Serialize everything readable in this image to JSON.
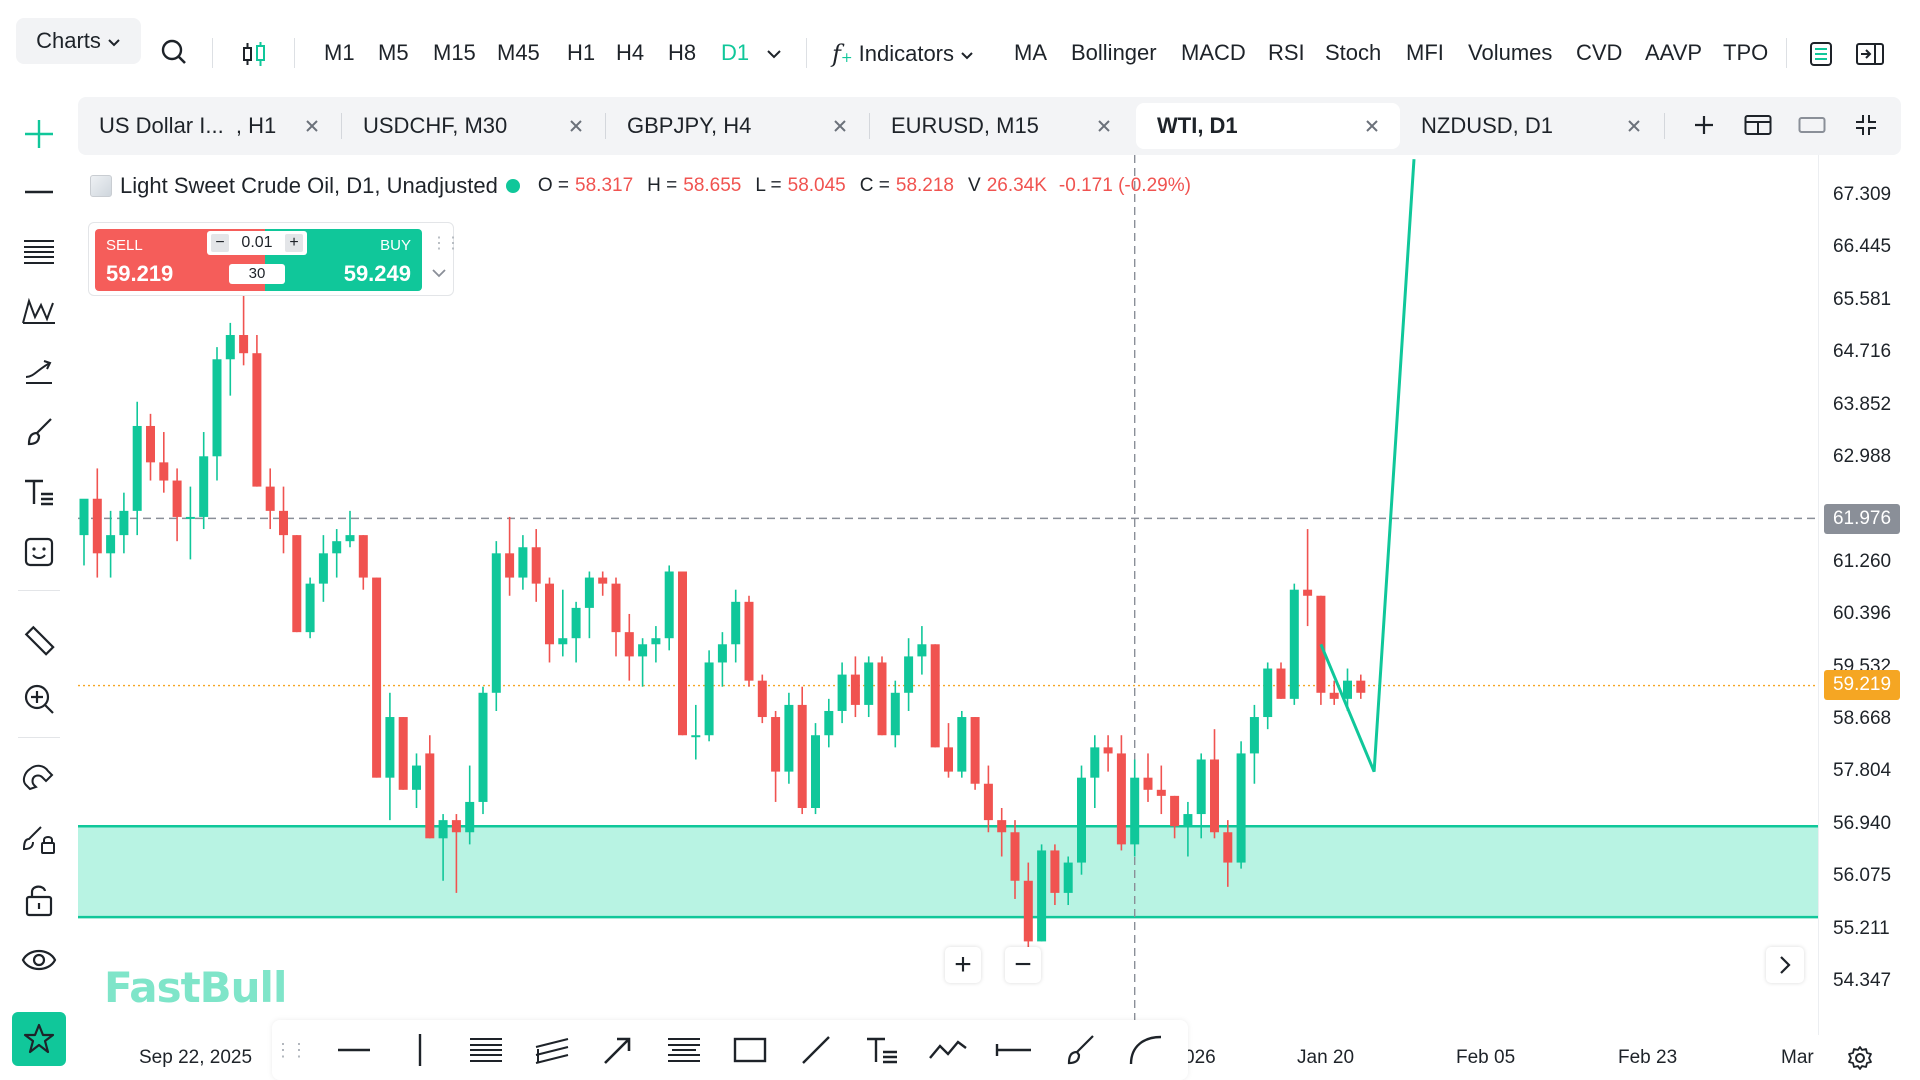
{
  "toolbar": {
    "charts_label": "Charts",
    "timeframes": [
      "M1",
      "M5",
      "M15",
      "M45",
      "H1",
      "H4",
      "H8",
      "D1"
    ],
    "active_timeframe": "D1",
    "indicators_label": "Indicators",
    "indicator_shortcuts": [
      "MA",
      "Bollinger",
      "MACD",
      "RSI",
      "Stoch",
      "MFI",
      "Volumes",
      "CVD",
      "AAVP",
      "TPO"
    ]
  },
  "tabs": [
    {
      "label": "US Dollar I...  , H1",
      "active": false
    },
    {
      "label": "USDCHF, M30",
      "active": false
    },
    {
      "label": "GBPJPY, H4",
      "active": false
    },
    {
      "label": "EURUSD, M15",
      "active": false
    },
    {
      "label": "WTI, D1",
      "active": true
    },
    {
      "label": "NZDUSD, D1",
      "active": false
    }
  ],
  "legend": {
    "title": "Light Sweet Crude Oil, D1, Unadjusted",
    "o_label": "O =",
    "o_value": "58.317",
    "h_label": "H =",
    "h_value": "58.655",
    "l_label": "L =",
    "l_value": "58.045",
    "c_label": "C =",
    "c_value": "58.218",
    "v_label": "V",
    "v_value": "26.34K",
    "change": "-0.171 (-0.29%)"
  },
  "trade_panel": {
    "sell_label": "SELL",
    "sell_price": "59.219",
    "buy_label": "BUY",
    "buy_price": "59.249",
    "lot": "0.01",
    "spread": "30",
    "minus": "−",
    "plus": "+"
  },
  "price_axis": {
    "labels": [
      "67.309",
      "66.445",
      "65.581",
      "64.716",
      "63.852",
      "62.988",
      "61.260",
      "60.396",
      "59.532",
      "58.668",
      "57.804",
      "56.940",
      "56.075",
      "55.211",
      "54.347"
    ],
    "crosshair_price": "61.976",
    "current_price": "59.219"
  },
  "time_axis": {
    "labels": [
      "Sep 22, 2025",
      "026",
      "Jan 20",
      "Feb 05",
      "Feb 23",
      "Mar"
    ]
  },
  "zoom": {
    "plus": "+",
    "minus": "−"
  },
  "logo_text": "FastBull",
  "colors": {
    "up": "#10c79a",
    "down": "#f05350",
    "accent": "#10c79a",
    "zone_fill": "#b8f3e3",
    "current_price_tag": "#f5a623",
    "crosshair_tag": "#8a8f98"
  },
  "chart_data": {
    "type": "candlestick",
    "symbol": "WTI",
    "timeframe": "D1",
    "ylim": [
      54.0,
      67.9
    ],
    "candles": [
      {
        "o": 61.7,
        "h": 62.2,
        "l": 61.2,
        "c": 62.3
      },
      {
        "o": 62.3,
        "h": 62.8,
        "l": 61.0,
        "c": 61.4
      },
      {
        "o": 61.4,
        "h": 62.1,
        "l": 61.0,
        "c": 61.7
      },
      {
        "o": 61.7,
        "h": 62.4,
        "l": 61.4,
        "c": 62.1
      },
      {
        "o": 62.1,
        "h": 63.9,
        "l": 61.7,
        "c": 63.5
      },
      {
        "o": 63.5,
        "h": 63.7,
        "l": 62.6,
        "c": 62.9
      },
      {
        "o": 62.9,
        "h": 63.4,
        "l": 62.4,
        "c": 62.6
      },
      {
        "o": 62.6,
        "h": 62.8,
        "l": 61.6,
        "c": 62.0
      },
      {
        "o": 62.0,
        "h": 62.5,
        "l": 61.3,
        "c": 62.0
      },
      {
        "o": 62.0,
        "h": 63.4,
        "l": 61.8,
        "c": 63.0
      },
      {
        "o": 63.0,
        "h": 64.8,
        "l": 62.6,
        "c": 64.6
      },
      {
        "o": 64.6,
        "h": 65.2,
        "l": 64.0,
        "c": 65.0
      },
      {
        "o": 65.0,
        "h": 65.8,
        "l": 64.5,
        "c": 64.7
      },
      {
        "o": 64.7,
        "h": 65.0,
        "l": 62.5,
        "c": 62.5
      },
      {
        "o": 62.5,
        "h": 62.8,
        "l": 61.8,
        "c": 62.1
      },
      {
        "o": 62.1,
        "h": 62.5,
        "l": 61.4,
        "c": 61.7
      },
      {
        "o": 61.7,
        "h": 61.7,
        "l": 60.1,
        "c": 60.1
      },
      {
        "o": 60.1,
        "h": 61.0,
        "l": 60.0,
        "c": 60.9
      },
      {
        "o": 60.9,
        "h": 61.7,
        "l": 60.6,
        "c": 61.4
      },
      {
        "o": 61.4,
        "h": 61.8,
        "l": 61.0,
        "c": 61.6
      },
      {
        "o": 61.6,
        "h": 62.1,
        "l": 61.5,
        "c": 61.7
      },
      {
        "o": 61.7,
        "h": 61.7,
        "l": 60.8,
        "c": 61.0
      },
      {
        "o": 61.0,
        "h": 61.0,
        "l": 57.7,
        "c": 57.7
      },
      {
        "o": 57.7,
        "h": 59.1,
        "l": 57.0,
        "c": 58.7
      },
      {
        "o": 58.7,
        "h": 58.7,
        "l": 57.5,
        "c": 57.5
      },
      {
        "o": 57.5,
        "h": 58.1,
        "l": 57.2,
        "c": 57.9
      },
      {
        "o": 58.1,
        "h": 58.4,
        "l": 56.7,
        "c": 56.7
      },
      {
        "o": 56.7,
        "h": 57.1,
        "l": 56.0,
        "c": 57.0
      },
      {
        "o": 57.0,
        "h": 57.1,
        "l": 55.8,
        "c": 56.8
      },
      {
        "o": 56.8,
        "h": 57.9,
        "l": 56.6,
        "c": 57.3
      },
      {
        "o": 57.3,
        "h": 59.2,
        "l": 57.1,
        "c": 59.1
      },
      {
        "o": 59.1,
        "h": 61.6,
        "l": 58.8,
        "c": 61.4
      },
      {
        "o": 61.4,
        "h": 62.0,
        "l": 60.7,
        "c": 61.0
      },
      {
        "o": 61.0,
        "h": 61.7,
        "l": 60.8,
        "c": 61.5
      },
      {
        "o": 61.5,
        "h": 61.8,
        "l": 60.6,
        "c": 60.9
      },
      {
        "o": 60.9,
        "h": 61.0,
        "l": 59.6,
        "c": 59.9
      },
      {
        "o": 59.9,
        "h": 60.8,
        "l": 59.7,
        "c": 60.0
      },
      {
        "o": 60.0,
        "h": 60.6,
        "l": 59.6,
        "c": 60.5
      },
      {
        "o": 60.5,
        "h": 61.1,
        "l": 60.0,
        "c": 61.0
      },
      {
        "o": 61.0,
        "h": 61.1,
        "l": 60.7,
        "c": 60.9
      },
      {
        "o": 60.9,
        "h": 61.0,
        "l": 59.7,
        "c": 60.1
      },
      {
        "o": 60.1,
        "h": 60.4,
        "l": 59.3,
        "c": 59.7
      },
      {
        "o": 59.7,
        "h": 60.0,
        "l": 59.2,
        "c": 59.9
      },
      {
        "o": 59.9,
        "h": 60.2,
        "l": 59.6,
        "c": 60.0
      },
      {
        "o": 60.0,
        "h": 61.2,
        "l": 59.8,
        "c": 61.1
      },
      {
        "o": 61.1,
        "h": 61.1,
        "l": 58.4,
        "c": 58.4
      },
      {
        "o": 58.4,
        "h": 58.9,
        "l": 58.0,
        "c": 58.4
      },
      {
        "o": 58.4,
        "h": 59.8,
        "l": 58.3,
        "c": 59.6
      },
      {
        "o": 59.6,
        "h": 60.1,
        "l": 59.2,
        "c": 59.9
      },
      {
        "o": 59.9,
        "h": 60.8,
        "l": 59.6,
        "c": 60.6
      },
      {
        "o": 60.6,
        "h": 60.7,
        "l": 59.2,
        "c": 59.3
      },
      {
        "o": 59.3,
        "h": 59.4,
        "l": 58.6,
        "c": 58.7
      },
      {
        "o": 58.7,
        "h": 58.8,
        "l": 57.3,
        "c": 57.8
      },
      {
        "o": 57.8,
        "h": 59.1,
        "l": 57.6,
        "c": 58.9
      },
      {
        "o": 58.9,
        "h": 59.2,
        "l": 57.1,
        "c": 57.2
      },
      {
        "o": 57.2,
        "h": 58.6,
        "l": 57.1,
        "c": 58.4
      },
      {
        "o": 58.4,
        "h": 59.0,
        "l": 58.2,
        "c": 58.8
      },
      {
        "o": 58.8,
        "h": 59.6,
        "l": 58.6,
        "c": 59.4
      },
      {
        "o": 59.4,
        "h": 59.7,
        "l": 58.7,
        "c": 58.9
      },
      {
        "o": 58.9,
        "h": 59.7,
        "l": 58.7,
        "c": 59.6
      },
      {
        "o": 59.6,
        "h": 59.7,
        "l": 58.4,
        "c": 58.4
      },
      {
        "o": 58.4,
        "h": 59.3,
        "l": 58.2,
        "c": 59.1
      },
      {
        "o": 59.1,
        "h": 60.0,
        "l": 58.8,
        "c": 59.7
      },
      {
        "o": 59.7,
        "h": 60.2,
        "l": 59.4,
        "c": 59.9
      },
      {
        "o": 59.9,
        "h": 59.9,
        "l": 58.2,
        "c": 58.2
      },
      {
        "o": 58.2,
        "h": 58.6,
        "l": 57.7,
        "c": 57.8
      },
      {
        "o": 57.8,
        "h": 58.8,
        "l": 57.7,
        "c": 58.7
      },
      {
        "o": 58.7,
        "h": 58.7,
        "l": 57.5,
        "c": 57.6
      },
      {
        "o": 57.6,
        "h": 57.9,
        "l": 56.8,
        "c": 57.0
      },
      {
        "o": 57.0,
        "h": 57.2,
        "l": 56.4,
        "c": 56.8
      },
      {
        "o": 56.8,
        "h": 57.0,
        "l": 55.7,
        "c": 56.0
      },
      {
        "o": 56.0,
        "h": 56.3,
        "l": 54.9,
        "c": 55.0
      },
      {
        "o": 55.0,
        "h": 56.6,
        "l": 55.0,
        "c": 56.5
      },
      {
        "o": 56.5,
        "h": 56.6,
        "l": 55.6,
        "c": 55.8
      },
      {
        "o": 55.8,
        "h": 56.4,
        "l": 55.6,
        "c": 56.3
      },
      {
        "o": 56.3,
        "h": 57.9,
        "l": 56.1,
        "c": 57.7
      },
      {
        "o": 57.7,
        "h": 58.4,
        "l": 57.2,
        "c": 58.2
      },
      {
        "o": 58.2,
        "h": 58.4,
        "l": 57.8,
        "c": 58.1
      },
      {
        "o": 58.1,
        "h": 58.4,
        "l": 56.5,
        "c": 56.6
      },
      {
        "o": 56.6,
        "h": 58.0,
        "l": 56.4,
        "c": 57.7
      },
      {
        "o": 57.7,
        "h": 58.1,
        "l": 57.3,
        "c": 57.5
      },
      {
        "o": 57.5,
        "h": 57.9,
        "l": 57.1,
        "c": 57.4
      },
      {
        "o": 57.4,
        "h": 57.4,
        "l": 56.7,
        "c": 56.9
      },
      {
        "o": 56.9,
        "h": 57.3,
        "l": 56.4,
        "c": 57.1
      },
      {
        "o": 57.1,
        "h": 58.1,
        "l": 56.7,
        "c": 58.0
      },
      {
        "o": 58.0,
        "h": 58.5,
        "l": 56.7,
        "c": 56.8
      },
      {
        "o": 56.8,
        "h": 57.0,
        "l": 55.9,
        "c": 56.3
      },
      {
        "o": 56.3,
        "h": 58.3,
        "l": 56.2,
        "c": 58.1
      },
      {
        "o": 58.1,
        "h": 58.9,
        "l": 57.6,
        "c": 58.7
      },
      {
        "o": 58.7,
        "h": 59.6,
        "l": 58.5,
        "c": 59.5
      },
      {
        "o": 59.5,
        "h": 59.6,
        "l": 59.0,
        "c": 59.0
      },
      {
        "o": 59.0,
        "h": 60.9,
        "l": 58.9,
        "c": 60.8
      },
      {
        "o": 60.8,
        "h": 61.8,
        "l": 60.2,
        "c": 60.7
      },
      {
        "o": 60.7,
        "h": 60.7,
        "l": 58.9,
        "c": 59.1
      },
      {
        "o": 59.1,
        "h": 59.3,
        "l": 58.9,
        "c": 59.0
      },
      {
        "o": 59.0,
        "h": 59.5,
        "l": 58.8,
        "c": 59.3
      },
      {
        "o": 59.3,
        "h": 59.4,
        "l": 59.0,
        "c": 59.1
      }
    ],
    "support_zone": [
      55.4,
      56.9
    ],
    "horizontal_lines": {
      "crosshair": 61.976,
      "current_price": 59.219
    },
    "projection_path": [
      {
        "x_index": 93,
        "y": 59.9
      },
      {
        "x_index": 97,
        "y": 57.8
      },
      {
        "x_index": 100,
        "y": 67.9
      }
    ],
    "crosshair_x_index": 79
  }
}
